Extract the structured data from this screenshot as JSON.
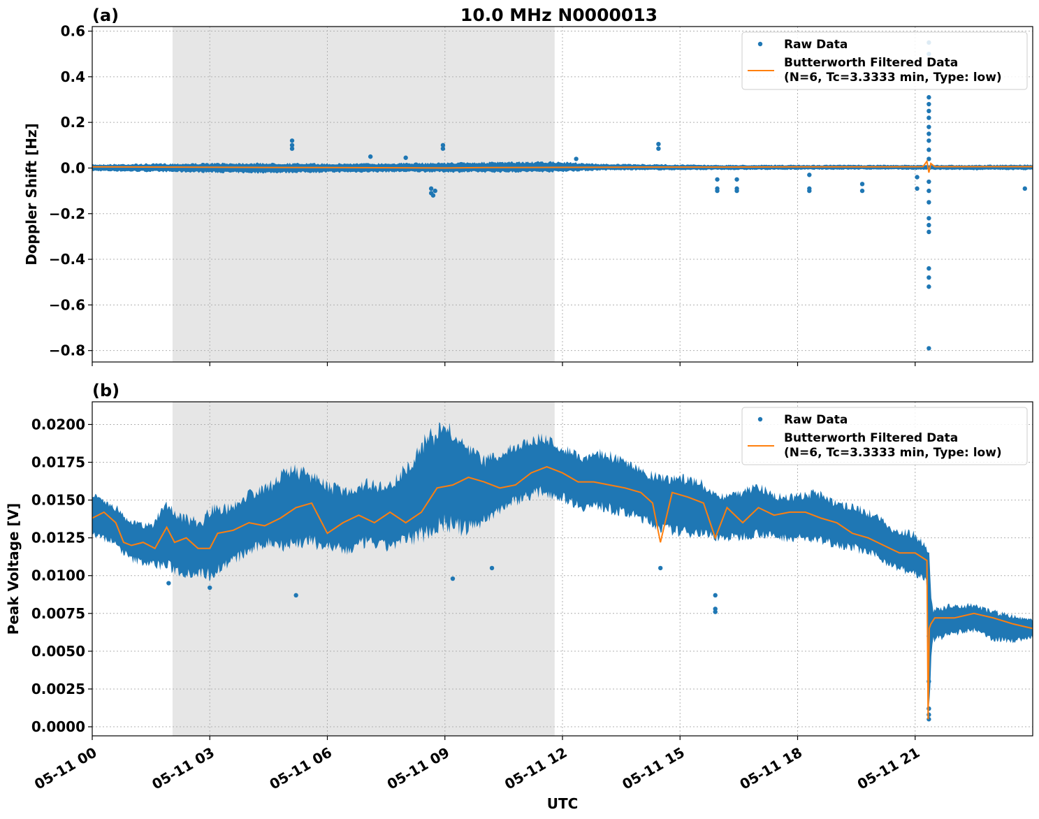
{
  "figure": {
    "title": "10.0 MHz N0000013",
    "x_axis_label": "UTC",
    "x_ticks": [
      "05-11 00",
      "05-11 03",
      "05-11 06",
      "05-11 09",
      "05-11 12",
      "05-11 15",
      "05-11 18",
      "05-11 21"
    ],
    "legend": {
      "raw_label": "Raw Data",
      "filtered_label_line1": "Butterworth Filtered Data",
      "filtered_label_line2": "(N=6, Tc=3.3333 min, Type: low)"
    },
    "colors": {
      "raw": "#1f77b4",
      "filtered": "#ff7f0e",
      "night_shading": "#e6e6e6"
    }
  },
  "chart_data": [
    {
      "type": "scatter",
      "panel_label": "(a)",
      "ylabel": "Doppler Shift [Hz]",
      "xlim_hours_utc": [
        0,
        24
      ],
      "ylim": [
        -0.85,
        0.62
      ],
      "y_ticks": [
        "0.6",
        "0.4",
        "0.2",
        "0.0",
        "−0.2",
        "−0.4",
        "−0.6",
        "−0.8"
      ],
      "y_tick_values": [
        0.6,
        0.4,
        0.2,
        0.0,
        -0.2,
        -0.4,
        -0.6,
        -0.8
      ],
      "grid": true,
      "legend_position": "upper-right",
      "shaded_interval_hours_utc": [
        2.05,
        11.8
      ],
      "raw_band": {
        "x_hours": [
          0,
          2,
          4,
          6,
          8,
          10,
          11.8,
          13,
          16,
          20,
          22,
          24
        ],
        "y_upper": [
          0.018,
          0.022,
          0.025,
          0.022,
          0.024,
          0.028,
          0.03,
          0.02,
          0.015,
          0.015,
          0.015,
          0.016
        ],
        "y_lower": [
          -0.015,
          -0.02,
          -0.025,
          -0.022,
          -0.02,
          -0.022,
          -0.02,
          -0.012,
          -0.01,
          -0.008,
          -0.01,
          -0.01
        ]
      },
      "raw_outliers": [
        {
          "x": 5.1,
          "y": 0.12
        },
        {
          "x": 5.1,
          "y": 0.1
        },
        {
          "x": 5.1,
          "y": 0.085
        },
        {
          "x": 7.1,
          "y": 0.05
        },
        {
          "x": 8.0,
          "y": 0.045
        },
        {
          "x": 8.65,
          "y": -0.09
        },
        {
          "x": 8.65,
          "y": -0.11
        },
        {
          "x": 8.7,
          "y": -0.12
        },
        {
          "x": 8.75,
          "y": -0.1
        },
        {
          "x": 8.95,
          "y": 0.1
        },
        {
          "x": 8.95,
          "y": 0.085
        },
        {
          "x": 12.35,
          "y": 0.04
        },
        {
          "x": 14.45,
          "y": 0.105
        },
        {
          "x": 14.45,
          "y": 0.085
        },
        {
          "x": 15.95,
          "y": -0.05
        },
        {
          "x": 15.95,
          "y": -0.09
        },
        {
          "x": 15.95,
          "y": -0.1
        },
        {
          "x": 16.45,
          "y": -0.05
        },
        {
          "x": 16.45,
          "y": -0.09
        },
        {
          "x": 16.45,
          "y": -0.1
        },
        {
          "x": 18.3,
          "y": -0.03
        },
        {
          "x": 18.3,
          "y": -0.09
        },
        {
          "x": 18.3,
          "y": -0.1
        },
        {
          "x": 19.65,
          "y": -0.07
        },
        {
          "x": 19.65,
          "y": -0.1
        },
        {
          "x": 21.05,
          "y": -0.04
        },
        {
          "x": 21.05,
          "y": -0.09
        },
        {
          "x": 21.35,
          "y": 0.55
        },
        {
          "x": 21.35,
          "y": 0.5
        },
        {
          "x": 21.35,
          "y": 0.31
        },
        {
          "x": 21.35,
          "y": 0.28
        },
        {
          "x": 21.35,
          "y": 0.25
        },
        {
          "x": 21.35,
          "y": 0.22
        },
        {
          "x": 21.35,
          "y": 0.18
        },
        {
          "x": 21.35,
          "y": 0.15
        },
        {
          "x": 21.35,
          "y": 0.12
        },
        {
          "x": 21.35,
          "y": 0.08
        },
        {
          "x": 21.35,
          "y": 0.04
        },
        {
          "x": 21.35,
          "y": -0.06
        },
        {
          "x": 21.35,
          "y": -0.1
        },
        {
          "x": 21.35,
          "y": -0.15
        },
        {
          "x": 21.35,
          "y": -0.22
        },
        {
          "x": 21.35,
          "y": -0.25
        },
        {
          "x": 21.35,
          "y": -0.28
        },
        {
          "x": 21.35,
          "y": -0.44
        },
        {
          "x": 21.35,
          "y": -0.48
        },
        {
          "x": 21.35,
          "y": -0.52
        },
        {
          "x": 21.35,
          "y": -0.79
        },
        {
          "x": 23.8,
          "y": -0.09
        }
      ],
      "filtered": {
        "x_hours": [
          0,
          2,
          4,
          6,
          8,
          9,
          10,
          11.8,
          14,
          16,
          18,
          20,
          21.2,
          21.3,
          21.35,
          21.4,
          21.5,
          22,
          24
        ],
        "y": [
          0.005,
          0.004,
          0.003,
          0.002,
          0.001,
          0.0,
          0.002,
          0.003,
          0.004,
          0.004,
          0.005,
          0.005,
          0.006,
          0.03,
          -0.02,
          0.02,
          0.006,
          0.006,
          0.006
        ]
      }
    },
    {
      "type": "scatter",
      "panel_label": "(b)",
      "ylabel": "Peak Voltage [V]",
      "xlim_hours_utc": [
        0,
        24
      ],
      "ylim": [
        -0.0006,
        0.0215
      ],
      "y_ticks": [
        "0.0200",
        "0.0175",
        "0.0150",
        "0.0125",
        "0.0100",
        "0.0075",
        "0.0050",
        "0.0025",
        "0.0000"
      ],
      "y_tick_values": [
        0.02,
        0.0175,
        0.015,
        0.0125,
        0.01,
        0.0075,
        0.005,
        0.0025,
        0.0
      ],
      "grid": true,
      "legend_position": "upper-right",
      "shaded_interval_hours_utc": [
        2.05,
        11.8
      ],
      "raw_band": {
        "x_hours": [
          0,
          0.5,
          1.0,
          1.5,
          1.9,
          2.3,
          2.8,
          3.0,
          3.5,
          4.0,
          4.5,
          5.0,
          5.5,
          6.0,
          6.5,
          7.0,
          7.5,
          8.0,
          8.5,
          9.0,
          9.5,
          10.0,
          10.5,
          11.0,
          11.5,
          12.0,
          12.5,
          13.0,
          13.5,
          14.0,
          14.5,
          15.0,
          15.5,
          16.0,
          16.5,
          17.0,
          17.5,
          18.0,
          18.5,
          19.0,
          19.5,
          20.0,
          20.5,
          21.0,
          21.3,
          21.35,
          21.45,
          22.0,
          22.5,
          23.0,
          23.5,
          24.0
        ],
        "y_upper": [
          0.0155,
          0.015,
          0.0138,
          0.0135,
          0.0152,
          0.0142,
          0.0138,
          0.0148,
          0.0148,
          0.0158,
          0.0162,
          0.0175,
          0.0172,
          0.0163,
          0.016,
          0.0165,
          0.0162,
          0.0175,
          0.0195,
          0.0205,
          0.019,
          0.018,
          0.0185,
          0.0192,
          0.0195,
          0.0188,
          0.0182,
          0.0185,
          0.018,
          0.0172,
          0.0168,
          0.0168,
          0.0165,
          0.0155,
          0.0158,
          0.0162,
          0.0155,
          0.0155,
          0.0158,
          0.015,
          0.0148,
          0.0142,
          0.0132,
          0.013,
          0.012,
          0.012,
          0.008,
          0.0082,
          0.0082,
          0.0078,
          0.0075,
          0.0072
        ],
        "y_lower": [
          0.0125,
          0.012,
          0.0108,
          0.0105,
          0.0102,
          0.0098,
          0.0098,
          0.0096,
          0.0105,
          0.0112,
          0.0118,
          0.0115,
          0.0118,
          0.0115,
          0.0112,
          0.0118,
          0.0115,
          0.0118,
          0.0122,
          0.0128,
          0.0125,
          0.0132,
          0.0142,
          0.0148,
          0.0152,
          0.0148,
          0.0142,
          0.0142,
          0.0138,
          0.0135,
          0.0128,
          0.0125,
          0.0125,
          0.0122,
          0.0122,
          0.0125,
          0.0122,
          0.0122,
          0.012,
          0.0118,
          0.0115,
          0.011,
          0.0103,
          0.0098,
          0.0095,
          0.0004,
          0.0055,
          0.006,
          0.0062,
          0.0056,
          0.0055,
          0.0058
        ]
      },
      "raw_outliers": [
        {
          "x": 1.95,
          "y": 0.0095
        },
        {
          "x": 3.0,
          "y": 0.0092
        },
        {
          "x": 5.2,
          "y": 0.0087
        },
        {
          "x": 9.2,
          "y": 0.0098
        },
        {
          "x": 10.2,
          "y": 0.0105
        },
        {
          "x": 14.5,
          "y": 0.0105
        },
        {
          "x": 15.9,
          "y": 0.0087
        },
        {
          "x": 15.9,
          "y": 0.0078
        },
        {
          "x": 15.9,
          "y": 0.0076
        },
        {
          "x": 21.35,
          "y": 0.0005
        },
        {
          "x": 21.35,
          "y": 0.0008
        },
        {
          "x": 21.35,
          "y": 0.0012
        },
        {
          "x": 21.35,
          "y": 0.003
        },
        {
          "x": 21.35,
          "y": 0.006
        }
      ],
      "filtered": {
        "x_hours": [
          0,
          0.3,
          0.6,
          0.8,
          1.0,
          1.3,
          1.6,
          1.9,
          2.1,
          2.4,
          2.7,
          3.0,
          3.2,
          3.6,
          4.0,
          4.4,
          4.8,
          5.2,
          5.6,
          6.0,
          6.4,
          6.8,
          7.2,
          7.6,
          8.0,
          8.4,
          8.8,
          9.2,
          9.6,
          10.0,
          10.4,
          10.8,
          11.2,
          11.6,
          12.0,
          12.4,
          12.8,
          13.2,
          13.6,
          14.0,
          14.3,
          14.5,
          14.8,
          15.2,
          15.6,
          15.9,
          16.2,
          16.6,
          17.0,
          17.4,
          17.8,
          18.2,
          18.6,
          19.0,
          19.4,
          19.8,
          20.2,
          20.6,
          21.0,
          21.3,
          21.33,
          21.36,
          21.4,
          21.5,
          22.0,
          22.5,
          23.0,
          23.5,
          24.0
        ],
        "y": [
          0.0138,
          0.0142,
          0.0135,
          0.0122,
          0.012,
          0.0122,
          0.0118,
          0.0132,
          0.0122,
          0.0125,
          0.0118,
          0.0118,
          0.0128,
          0.013,
          0.0135,
          0.0133,
          0.0138,
          0.0145,
          0.0148,
          0.0128,
          0.0135,
          0.014,
          0.0135,
          0.0142,
          0.0135,
          0.0142,
          0.0158,
          0.016,
          0.0165,
          0.0162,
          0.0158,
          0.016,
          0.0168,
          0.0172,
          0.0168,
          0.0162,
          0.0162,
          0.016,
          0.0158,
          0.0155,
          0.0148,
          0.0122,
          0.0155,
          0.0152,
          0.0148,
          0.0125,
          0.0145,
          0.0135,
          0.0145,
          0.014,
          0.0142,
          0.0142,
          0.0138,
          0.0135,
          0.0128,
          0.0125,
          0.012,
          0.0115,
          0.0115,
          0.011,
          0.0005,
          0.0065,
          0.0068,
          0.0072,
          0.0072,
          0.0075,
          0.0072,
          0.0068,
          0.0065
        ]
      }
    }
  ]
}
